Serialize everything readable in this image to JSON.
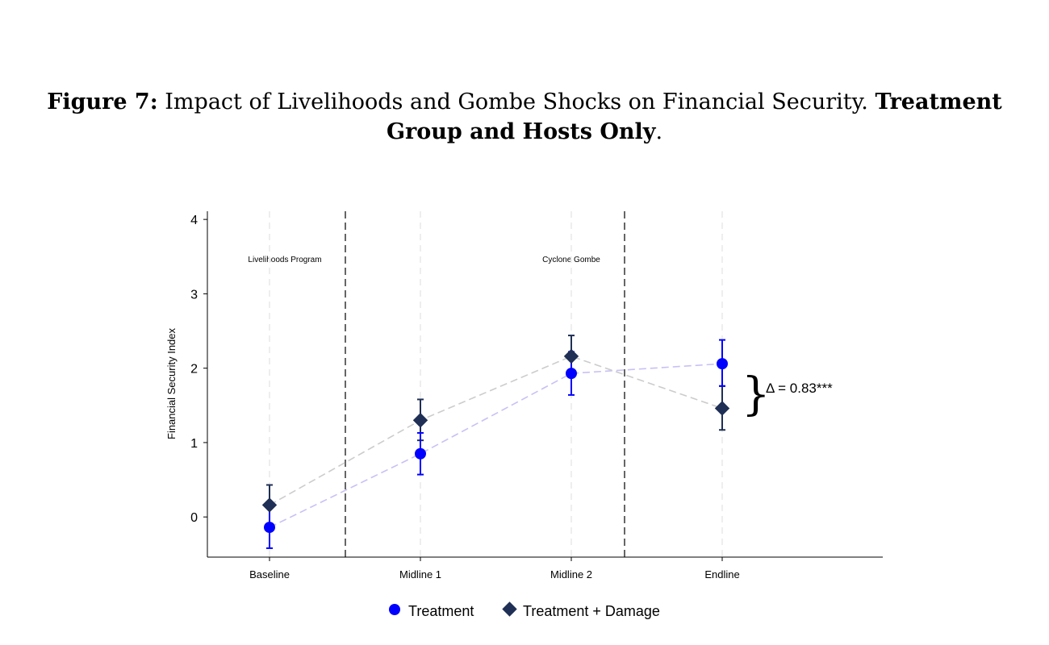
{
  "caption": {
    "label": "Figure 7:",
    "text": " Impact of Livelihoods and Gombe Shocks on Financial Security. ",
    "bold_tail": "Treatment Group and Hosts Only",
    "end": "."
  },
  "chart_data": {
    "type": "scatter",
    "title": "",
    "xlabel": "",
    "ylabel": "Financial Security Index",
    "categories": [
      "Baseline",
      "Midline 1",
      "Midline 2",
      "Endline"
    ],
    "ylim": [
      -0.54,
      4.11
    ],
    "yticks": [
      0,
      1,
      2,
      3,
      4
    ],
    "grid": false,
    "legend_position": "bottom",
    "series": [
      {
        "name": "Treatment",
        "color": "#0000ff",
        "marker": "circle",
        "line_color": "#c8c0f5",
        "values": [
          -0.14,
          0.85,
          1.93,
          2.06
        ],
        "ci_low": [
          -0.42,
          0.57,
          1.64,
          1.76
        ],
        "ci_high": [
          0.14,
          1.13,
          2.22,
          2.38
        ]
      },
      {
        "name": "Treatment + Damage",
        "color": "#1f2f55",
        "marker": "diamond",
        "line_color": "#cccccc",
        "values": [
          0.16,
          1.3,
          2.16,
          1.46
        ],
        "ci_low": [
          -0.11,
          1.03,
          1.88,
          1.17
        ],
        "ci_high": [
          0.43,
          1.58,
          2.44,
          1.76
        ]
      }
    ],
    "event_lines": [
      {
        "x_between": "Baseline–Midline 1",
        "label": "Livelihoods Program"
      },
      {
        "x_between": "Midline 2–Endline",
        "label": "Cyclone Gombe"
      }
    ],
    "annotation": "Δ = 0.83***"
  }
}
